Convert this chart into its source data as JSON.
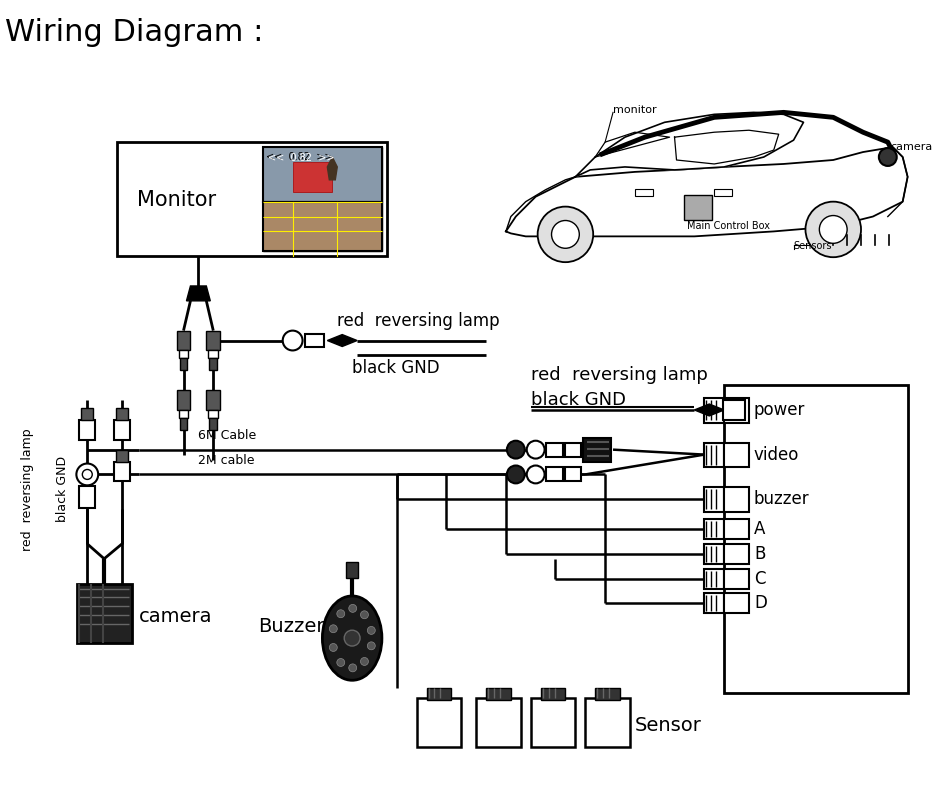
{
  "title": "Wiring Diagram :",
  "bg_color": "#ffffff",
  "title_fontsize": 24,
  "monitor_label": "Monitor",
  "camera_label": "camera",
  "buzzer_label": "Buzzer",
  "sensor_label": "Sensor",
  "power_label": "power",
  "video_label": "video",
  "buzzer_conn_label": "buzzer",
  "abcd_labels": [
    "A",
    "B",
    "C",
    "D"
  ],
  "red_lamp_label_mid": "red  reversing lamp",
  "black_gnd_label_mid": "black GND",
  "red_lamp_label_right": "red  reversing lamp",
  "black_gnd_label_right": "black GND",
  "cable_6m": "6M Cable",
  "cable_2m": "2M cable",
  "left_red_label": "red  reversing lamp",
  "left_black_label": "black GND",
  "monitor_small": "monitor",
  "camera_small": "camera",
  "mcb_label": "Main Control Box",
  "sensors_small": "Sensors"
}
